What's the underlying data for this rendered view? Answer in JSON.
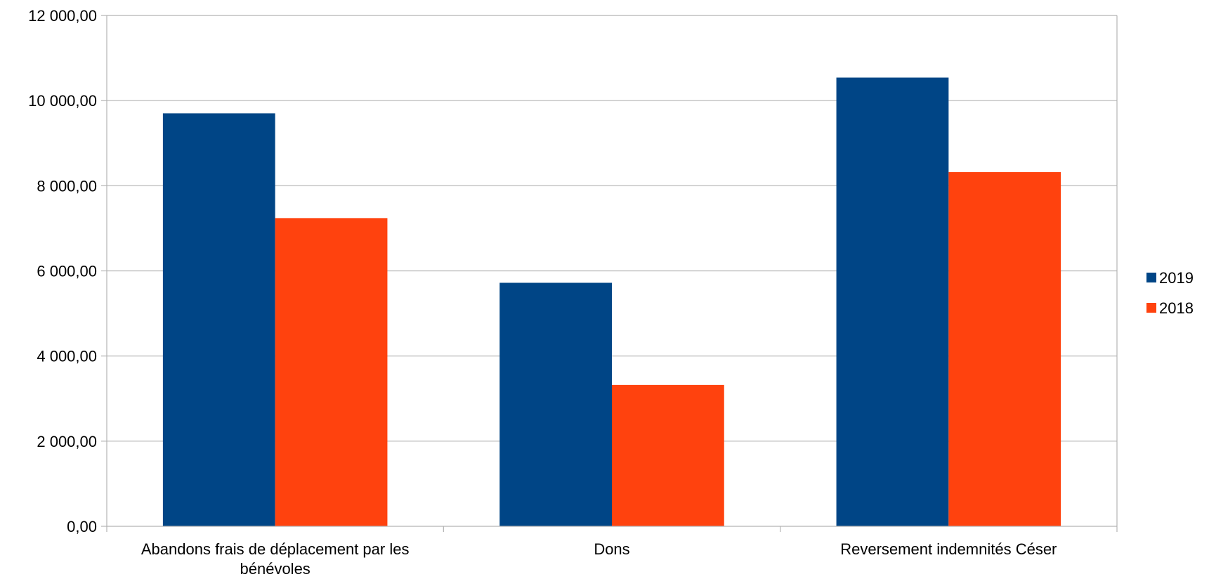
{
  "chart_data": {
    "type": "bar",
    "title": "",
    "xlabel": "",
    "ylabel": "",
    "categories": [
      "Abandons frais de déplacement par les bénévoles",
      "Dons",
      "Reversement indemnités Céser"
    ],
    "series": [
      {
        "name": "2019",
        "color": "#004586",
        "values": [
          9700,
          5720,
          10540
        ]
      },
      {
        "name": "2018",
        "color": "#FF420E",
        "values": [
          7240,
          3320,
          8320
        ]
      }
    ],
    "ylim": [
      0,
      12000
    ],
    "y_ticks": [
      0,
      2000,
      4000,
      6000,
      8000,
      10000,
      12000
    ],
    "y_tick_labels": [
      "0,00",
      "2 000,00",
      "4 000,00",
      "6 000,00",
      "8 000,00",
      "10 000,00",
      "12 000,00"
    ],
    "grid": true,
    "legend_position": "right"
  }
}
